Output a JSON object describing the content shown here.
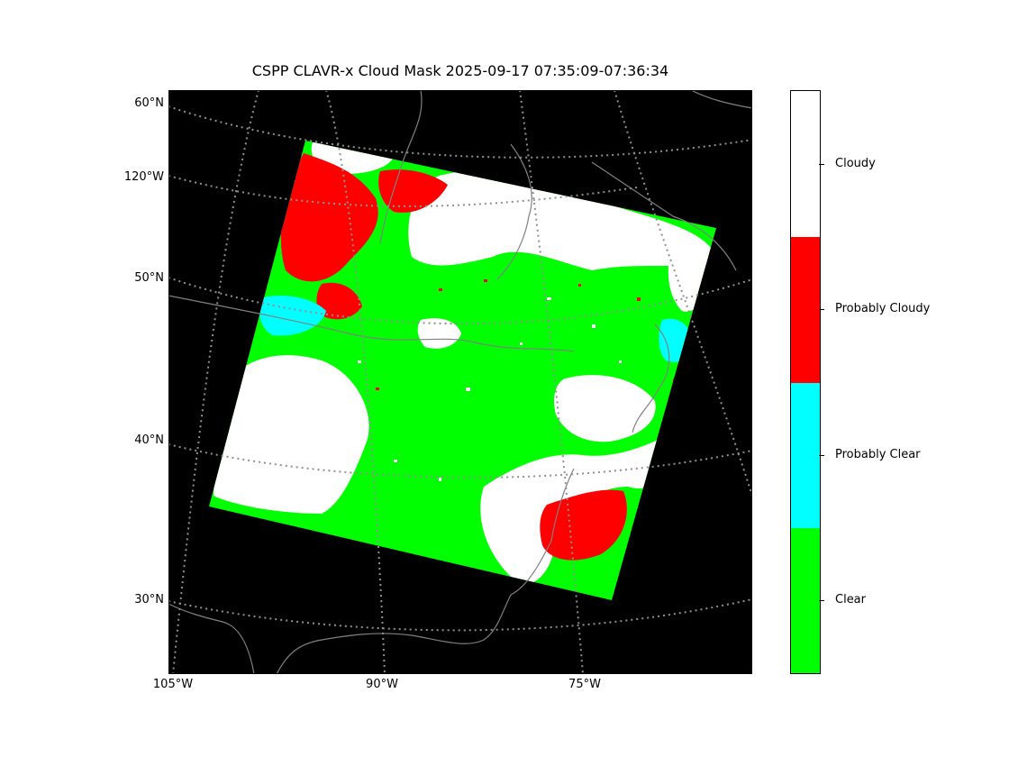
{
  "title": "CSPP CLAVR-x Cloud Mask 2025-09-17 07:35:09-07:36:34",
  "map": {
    "lat_labels": [
      "60°N",
      "120°W",
      "50°N",
      "40°N",
      "30°N"
    ],
    "lon_labels": [
      "105°W",
      "90°W",
      "75°W"
    ],
    "background_color": "#000000",
    "coastline_color": "#808080",
    "graticule_color": "#909090"
  },
  "legend": {
    "categories": [
      {
        "label": "Cloudy",
        "color": "#ffffff"
      },
      {
        "label": "Probably Cloudy",
        "color": "#ff0000"
      },
      {
        "label": "Probably Clear",
        "color": "#00ffff"
      },
      {
        "label": "Clear",
        "color": "#00ff00"
      }
    ]
  }
}
